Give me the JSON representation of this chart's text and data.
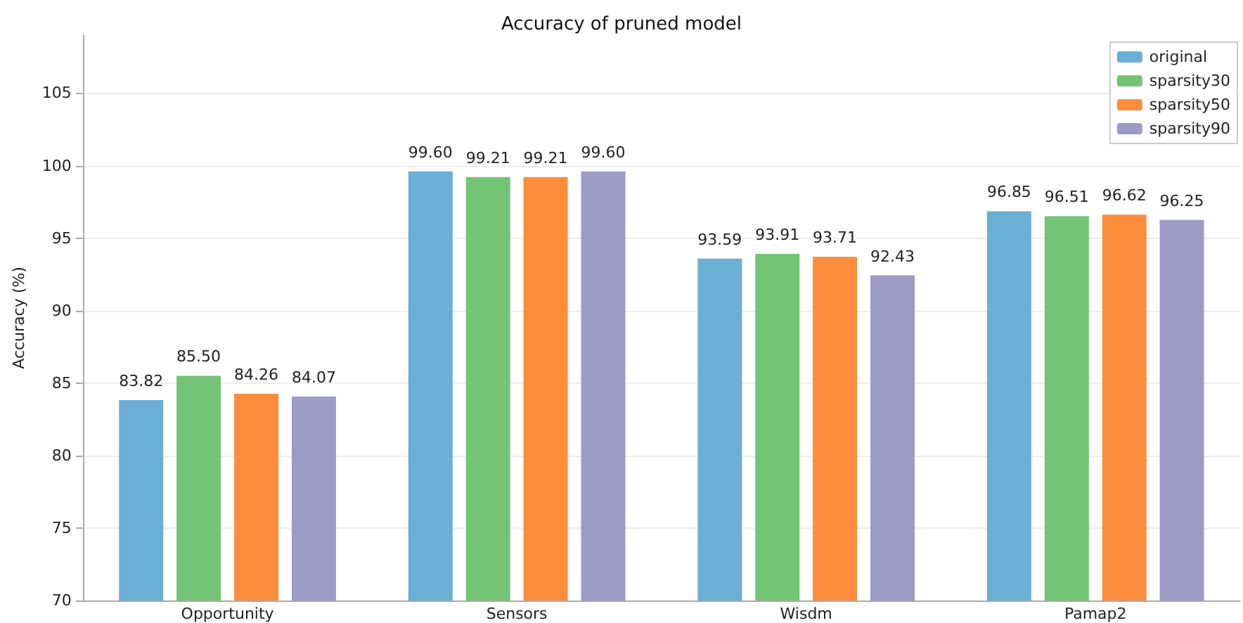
{
  "chart_data": {
    "type": "bar",
    "title": "Accuracy of pruned model",
    "ylabel": "Accuracy (%)",
    "categories": [
      "Opportunity",
      "Sensors",
      "Wisdm",
      "Pamap2"
    ],
    "series": [
      {
        "name": "original",
        "color": "#6baed6",
        "values": [
          83.82,
          99.6,
          93.59,
          96.85
        ],
        "value_labels": [
          "83.82",
          "99.60",
          "93.59",
          "96.85"
        ]
      },
      {
        "name": "sparsity30",
        "color": "#74c476",
        "values": [
          85.5,
          99.21,
          93.91,
          96.51
        ],
        "value_labels": [
          "85.50",
          "99.21",
          "93.91",
          "96.51"
        ]
      },
      {
        "name": "sparsity50",
        "color": "#fd8d3c",
        "values": [
          84.26,
          99.21,
          93.71,
          96.62
        ],
        "value_labels": [
          "84.26",
          "99.21",
          "93.71",
          "96.62"
        ]
      },
      {
        "name": "sparsity90",
        "color": "#9e9ac8",
        "values": [
          84.07,
          99.6,
          92.43,
          96.25
        ],
        "value_labels": [
          "84.07",
          "99.60",
          "92.43",
          "96.25"
        ]
      }
    ],
    "ylim": [
      70,
      109
    ],
    "yticks": [
      70,
      75,
      80,
      85,
      90,
      95,
      100,
      105
    ],
    "grid": "y",
    "legend": "top right"
  }
}
